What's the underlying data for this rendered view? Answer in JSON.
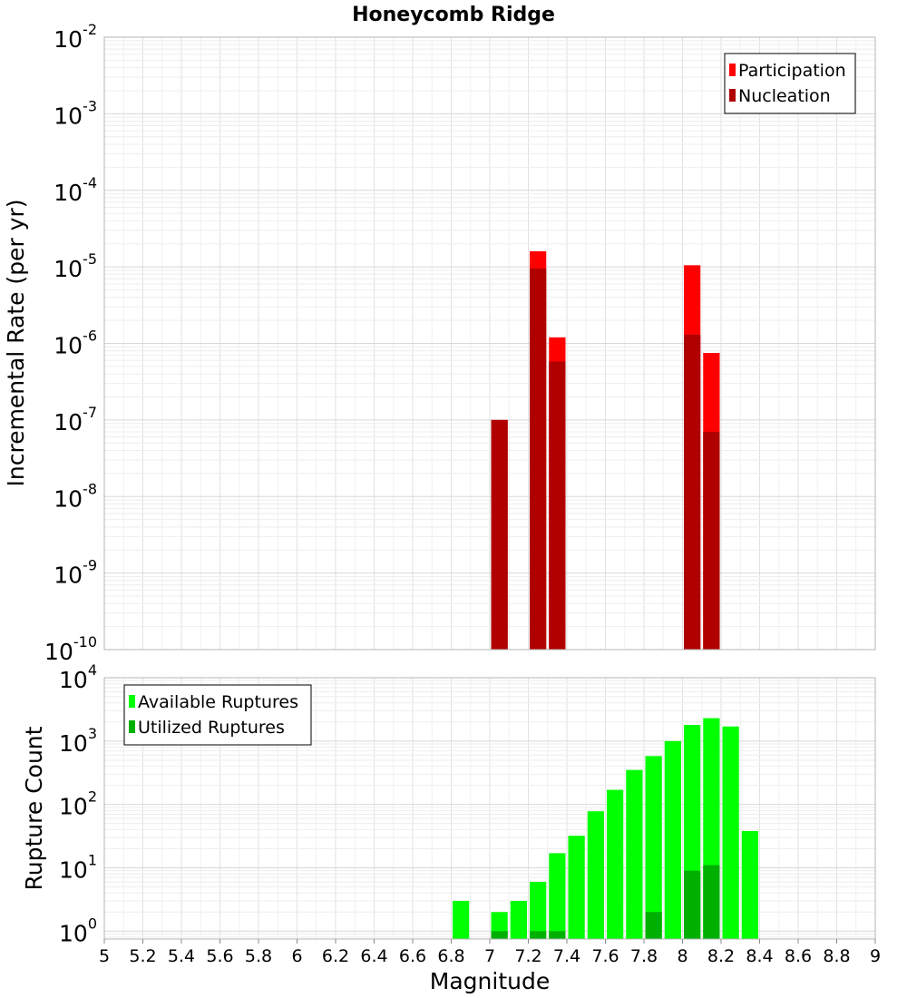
{
  "chart_data": [
    {
      "type": "bar",
      "title": "Honeycomb Ridge",
      "xlabel": "",
      "ylabel": "Incremental Rate (per yr)",
      "yscale": "log",
      "ylim": [
        1e-10,
        0.01
      ],
      "xlim": [
        5,
        9
      ],
      "yticks": [
        {
          "base": "10",
          "exp": "-10"
        },
        {
          "base": "10",
          "exp": "-9"
        },
        {
          "base": "10",
          "exp": "-8"
        },
        {
          "base": "10",
          "exp": "-7"
        },
        {
          "base": "10",
          "exp": "-6"
        },
        {
          "base": "10",
          "exp": "-5"
        },
        {
          "base": "10",
          "exp": "-4"
        },
        {
          "base": "10",
          "exp": "-3"
        },
        {
          "base": "10",
          "exp": "-2"
        }
      ],
      "grid": true,
      "legend": "top-right",
      "bar_width": 0.1,
      "series": [
        {
          "name": "Participation",
          "color": "#ff0000",
          "x": [
            7.05,
            7.25,
            7.35,
            8.05,
            8.15
          ],
          "values": [
            1e-07,
            1.6e-05,
            1.2e-06,
            1.05e-05,
            7.5e-07
          ]
        },
        {
          "name": "Nucleation",
          "color": "#b00000",
          "x": [
            7.05,
            7.25,
            7.35,
            8.05,
            8.15
          ],
          "values": [
            1e-07,
            9.5e-06,
            5.8e-07,
            1.3e-06,
            7e-08
          ]
        }
      ]
    },
    {
      "type": "bar",
      "title": "",
      "xlabel": "Magnitude",
      "ylabel": "Rupture Count",
      "yscale": "log",
      "ylim": [
        0.75,
        10000
      ],
      "xlim": [
        5,
        9
      ],
      "xticks": [
        "5",
        "5.2",
        "5.4",
        "5.6",
        "5.8",
        "6",
        "6.2",
        "6.4",
        "6.6",
        "6.8",
        "7",
        "7.2",
        "7.4",
        "7.6",
        "7.8",
        "8",
        "8.2",
        "8.4",
        "8.6",
        "8.8",
        "9"
      ],
      "yticks": [
        {
          "base": "10",
          "exp": "0",
          "value": 1
        },
        {
          "base": "10",
          "exp": "1",
          "value": 10
        },
        {
          "base": "10",
          "exp": "2",
          "value": 100
        },
        {
          "base": "10",
          "exp": "3",
          "value": 1000
        },
        {
          "base": "10",
          "exp": "4",
          "value": 10000
        }
      ],
      "grid": true,
      "legend": "top-left",
      "bar_width": 0.1,
      "series": [
        {
          "name": "Available Ruptures",
          "color": "#00ff00",
          "x": [
            6.85,
            7.05,
            7.15,
            7.25,
            7.35,
            7.45,
            7.55,
            7.65,
            7.75,
            7.85,
            7.95,
            8.05,
            8.15,
            8.25,
            8.35
          ],
          "values": [
            3,
            2,
            3,
            6,
            17,
            32,
            78,
            170,
            350,
            580,
            1000,
            1800,
            2300,
            1700,
            38
          ]
        },
        {
          "name": "Utilized Ruptures",
          "color": "#00b000",
          "x": [
            7.05,
            7.25,
            7.35,
            7.85,
            8.05,
            8.15
          ],
          "values": [
            1,
            1,
            1,
            2,
            9,
            11
          ]
        }
      ]
    }
  ]
}
